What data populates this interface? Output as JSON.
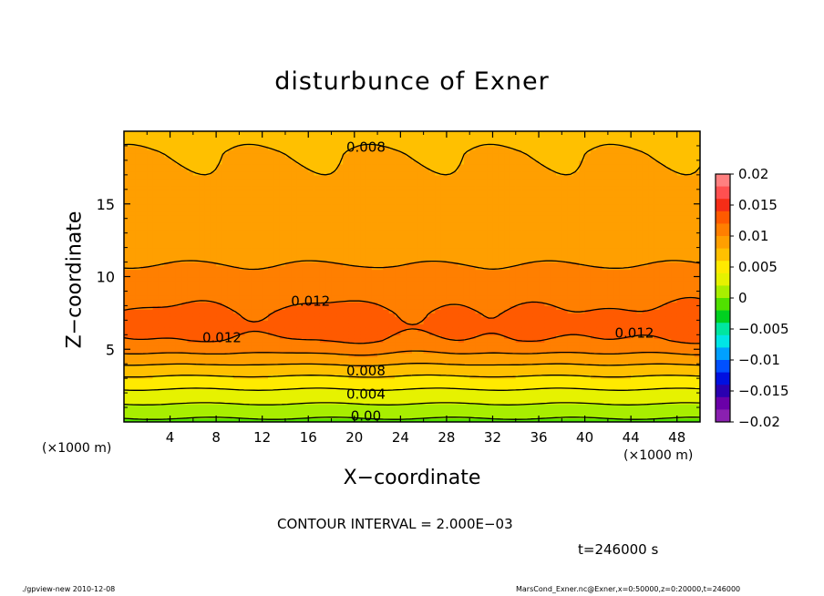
{
  "title": "disturbunce of Exner",
  "xlabel": "X−coordinate",
  "ylabel": "Z−coordinate",
  "x_unit": "(×1000 m)",
  "contour_interval_text": "CONTOUR INTERVAL = 2.000E−03",
  "time_text": "t=246000 s",
  "footer_left": "./gpview-new   2010-12-08",
  "footer_right": "MarsCond_Exner.nc@Exner,x=0:50000,z=0:20000,t=246000",
  "chart_data": {
    "type": "heatmap",
    "title": "disturbunce of Exner",
    "xlabel": "X−coordinate",
    "ylabel": "Z−coordinate",
    "x_unit": "(×1000 m)",
    "xlim": [
      0,
      50
    ],
    "ylim": [
      0,
      20
    ],
    "xticks": [
      4,
      8,
      12,
      16,
      20,
      24,
      28,
      32,
      36,
      40,
      44,
      48
    ],
    "yticks": [
      5,
      10,
      15
    ],
    "profile": {
      "z": [
        0,
        0.5,
        1.5,
        2.5,
        3.5,
        4.5,
        5.5,
        6.5,
        7.5,
        8.5,
        9.5,
        10.5,
        11.5,
        12.5,
        13.5,
        14.5,
        15.5,
        16.5,
        17.5,
        18.5,
        19.3
      ],
      "exner": [
        -0.0005,
        0.0005,
        0.0025,
        0.0045,
        0.0068,
        0.0095,
        0.0118,
        0.0128,
        0.0124,
        0.0115,
        0.0108,
        0.0102,
        0.0096,
        0.0091,
        0.0089,
        0.0086,
        0.0084,
        0.0082,
        0.0081,
        0.008,
        0.0078
      ]
    },
    "contour_labels": [
      {
        "value": "0.008",
        "x": 21,
        "z": 18.9
      },
      {
        "value": "0.012",
        "x": 16.2,
        "z": 8.3
      },
      {
        "value": "0.012",
        "x": 8.5,
        "z": 5.8
      },
      {
        "value": "0.012",
        "x": 44.3,
        "z": 6.1
      },
      {
        "value": "0.008",
        "x": 21,
        "z": 3.5
      },
      {
        "value": "0.004",
        "x": 21,
        "z": 1.9
      },
      {
        "value": "0.00",
        "x": 21,
        "z": 0.4
      }
    ],
    "colorbar": {
      "ticks": [
        "0.02",
        "0.015",
        "0.01",
        "0.005",
        "0",
        "−0.005",
        "−0.01",
        "−0.015",
        "−0.02"
      ],
      "colors": [
        "#ff8080",
        "#ff5050",
        "#f52d17",
        "#ff5a00",
        "#ff7f00",
        "#ff9f00",
        "#ffc000",
        "#ffea00",
        "#e6f200",
        "#a8ee00",
        "#50e000",
        "#00d020",
        "#00e6a0",
        "#00e6e6",
        "#00a0ff",
        "#0050ff",
        "#0010e0",
        "#2a00b0",
        "#6a00a8",
        "#8a20b0"
      ]
    },
    "contour_interval": 0.002,
    "time_s": 246000
  }
}
